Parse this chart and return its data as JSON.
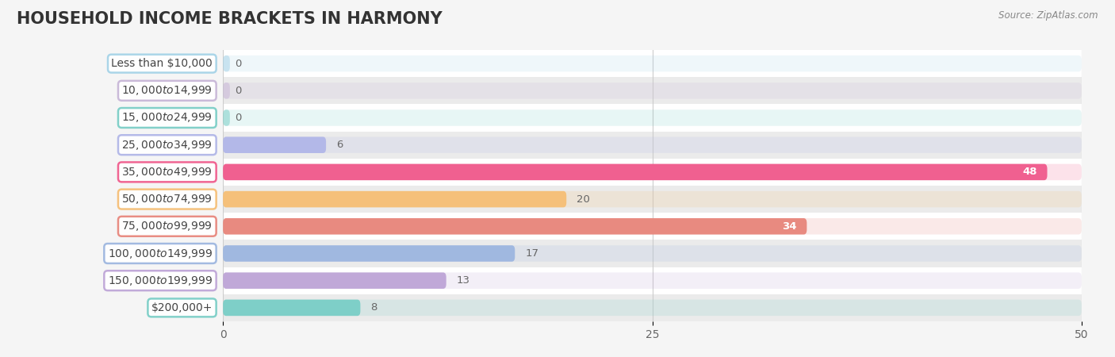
{
  "title": "HOUSEHOLD INCOME BRACKETS IN HARMONY",
  "source": "Source: ZipAtlas.com",
  "categories": [
    "Less than $10,000",
    "$10,000 to $14,999",
    "$15,000 to $24,999",
    "$25,000 to $34,999",
    "$35,000 to $49,999",
    "$50,000 to $74,999",
    "$75,000 to $99,999",
    "$100,000 to $149,999",
    "$150,000 to $199,999",
    "$200,000+"
  ],
  "values": [
    0,
    0,
    0,
    6,
    48,
    20,
    34,
    17,
    13,
    8
  ],
  "bar_colors": [
    "#a8d4e8",
    "#c9b8d8",
    "#7ecfc8",
    "#b3b8e8",
    "#f06090",
    "#f5c07a",
    "#e88a80",
    "#a0b8e0",
    "#c0a8d8",
    "#7ecfc8"
  ],
  "xlim": [
    0,
    50
  ],
  "xticks": [
    0,
    25,
    50
  ],
  "background_color": "#f5f5f5",
  "title_fontsize": 15,
  "label_fontsize": 10,
  "value_fontsize": 9.5,
  "bar_height": 0.6,
  "figsize": [
    14.06,
    4.5
  ],
  "dpi": 100
}
